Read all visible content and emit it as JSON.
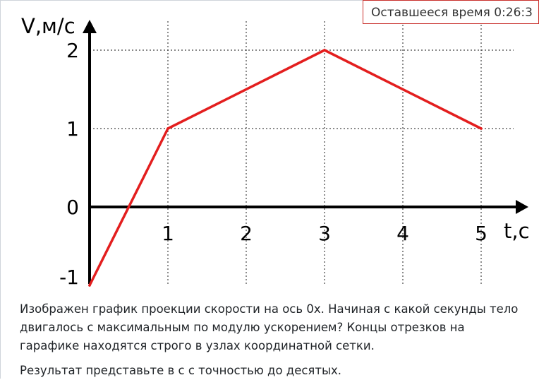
{
  "timer": {
    "text": "Оставшееся время 0:26:3"
  },
  "chart_data": {
    "type": "line",
    "title": "",
    "xlabel": "t,с",
    "ylabel": "V,м/с",
    "xlim": [
      0,
      5.5
    ],
    "ylim": [
      -1,
      2.3
    ],
    "x_ticks": [
      1,
      2,
      3,
      4,
      5
    ],
    "y_ticks": [
      -1,
      0,
      1,
      2
    ],
    "x_tick_labels": [
      "1",
      "2",
      "3",
      "4",
      "5"
    ],
    "y_tick_labels": [
      "-1",
      "0",
      "1",
      "2"
    ],
    "grid": "dotted",
    "color": "#e31e1e",
    "series": [
      {
        "x": [
          0,
          1,
          3,
          5
        ],
        "y": [
          -1,
          1,
          2,
          1
        ]
      }
    ]
  },
  "question": {
    "text": "Изображен график проекции скорости на ось 0x. Начиная с какой секунды тело двигалось с максимальным по модулю ускорением? Концы отрезков на гарафике находятся строго в узлах координатной сетки.",
    "instruction": "Результат представьте в с с точностью до десятых."
  }
}
